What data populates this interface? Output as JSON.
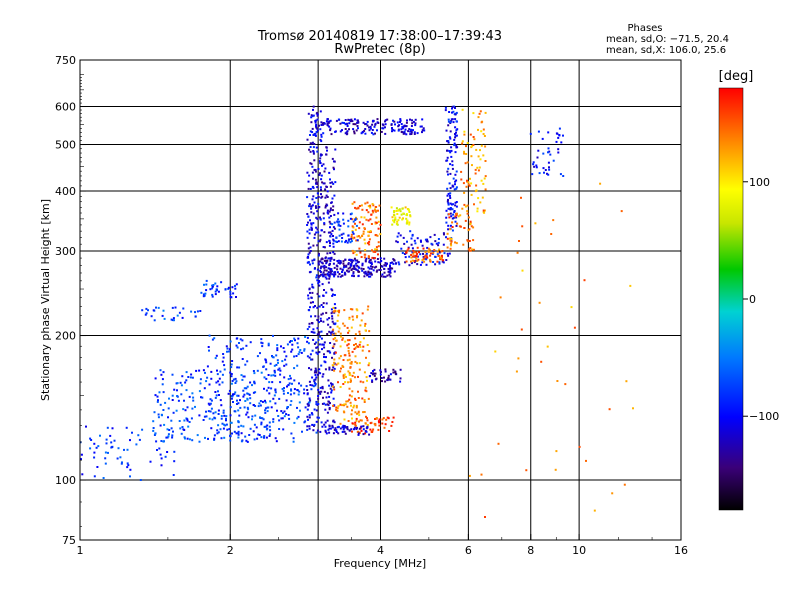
{
  "header": {
    "title_line1": "Tromsø 20140819 17:38:00–17:39:43",
    "title_line2": "RwPretec (8p)",
    "stats_title": "Phases",
    "stats_o": "mean, sd,O: −71.5, 20.4",
    "stats_x": "mean, sd,X: 106.0, 25.6"
  },
  "colorbar": {
    "label": "[deg]",
    "min": -180,
    "max": 180,
    "ticks": [
      {
        "value": 100,
        "label": "100"
      },
      {
        "value": 0,
        "label": "0"
      },
      {
        "value": -100,
        "label": "−100"
      }
    ]
  },
  "chart_data": {
    "type": "scatter",
    "title": "Tromsø 20140819 17:38:00–17:39:43",
    "subtitle": "RwPretec (8p)",
    "xlabel": "Frequency [MHz]",
    "ylabel": "Stationary phase Virtual Height [km]",
    "xscale": "log",
    "yscale": "log",
    "xlim": [
      1,
      16
    ],
    "ylim": [
      75,
      750
    ],
    "grid": true,
    "color_by": "phase [deg]",
    "x_ticks": [
      {
        "value": 1,
        "label": "1"
      },
      {
        "value": 2,
        "label": "2"
      },
      {
        "value": 4,
        "label": "4"
      },
      {
        "value": 6,
        "label": "6"
      },
      {
        "value": 8,
        "label": "8"
      },
      {
        "value": 10,
        "label": "10"
      },
      {
        "value": 16,
        "label": "16"
      }
    ],
    "x_gridlines": [
      2,
      3,
      4,
      6,
      8,
      10
    ],
    "y_ticks": [
      {
        "value": 75,
        "label": "75"
      },
      {
        "value": 100,
        "label": "100"
      },
      {
        "value": 200,
        "label": "200"
      },
      {
        "value": 300,
        "label": "300"
      },
      {
        "value": 400,
        "label": "400"
      },
      {
        "value": 500,
        "label": "500"
      },
      {
        "value": 600,
        "label": "600"
      },
      {
        "value": 750,
        "label": "750"
      }
    ],
    "y_gridlines": [
      100,
      200,
      300,
      400,
      500,
      600
    ],
    "clusters": [
      {
        "f_min": 1.0,
        "f_max": 1.55,
        "h_min": 100,
        "h_max": 130,
        "phase": -80,
        "n": 70
      },
      {
        "f_min": 1.4,
        "f_max": 2.3,
        "h_min": 120,
        "h_max": 170,
        "phase": -75,
        "n": 200
      },
      {
        "f_min": 1.8,
        "f_max": 2.7,
        "h_min": 120,
        "h_max": 200,
        "phase": -80,
        "n": 200
      },
      {
        "f_min": 2.3,
        "f_max": 3.0,
        "h_min": 125,
        "h_max": 200,
        "phase": -75,
        "n": 120
      },
      {
        "f_min": 1.3,
        "f_max": 1.75,
        "h_min": 215,
        "h_max": 230,
        "phase": -70,
        "n": 30
      },
      {
        "f_min": 1.75,
        "f_max": 2.1,
        "h_min": 240,
        "h_max": 260,
        "phase": -80,
        "n": 40
      },
      {
        "f_min": 2.85,
        "f_max": 3.05,
        "h_min": 125,
        "h_max": 600,
        "phase": -110,
        "n": 300
      },
      {
        "f_min": 3.05,
        "f_max": 3.25,
        "h_min": 125,
        "h_max": 500,
        "phase": -115,
        "n": 220
      },
      {
        "f_min": 2.95,
        "f_max": 4.9,
        "h_min": 525,
        "h_max": 565,
        "phase": -115,
        "n": 180
      },
      {
        "f_min": 3.0,
        "f_max": 4.3,
        "h_min": 265,
        "h_max": 290,
        "phase": -120,
        "n": 220
      },
      {
        "f_min": 4.3,
        "f_max": 5.6,
        "h_min": 280,
        "h_max": 330,
        "phase": -100,
        "n": 90
      },
      {
        "f_min": 5.4,
        "f_max": 5.7,
        "h_min": 330,
        "h_max": 600,
        "phase": -100,
        "n": 120
      },
      {
        "f_min": 3.2,
        "f_max": 3.8,
        "h_min": 130,
        "h_max": 230,
        "phase": 135,
        "n": 200
      },
      {
        "f_min": 3.5,
        "f_max": 4.0,
        "h_min": 290,
        "h_max": 380,
        "phase": 140,
        "n": 110
      },
      {
        "f_min": 3.2,
        "f_max": 3.6,
        "h_min": 310,
        "h_max": 360,
        "phase": -85,
        "n": 50
      },
      {
        "f_min": 4.2,
        "f_max": 4.6,
        "h_min": 340,
        "h_max": 370,
        "phase": 90,
        "n": 50
      },
      {
        "f_min": 4.5,
        "f_max": 5.4,
        "h_min": 285,
        "h_max": 305,
        "phase": 150,
        "n": 60
      },
      {
        "f_min": 5.4,
        "f_max": 6.2,
        "h_min": 300,
        "h_max": 360,
        "phase": 140,
        "n": 50
      },
      {
        "f_min": 5.8,
        "f_max": 6.5,
        "h_min": 360,
        "h_max": 600,
        "phase": 130,
        "n": 80
      },
      {
        "f_min": 3.5,
        "f_max": 4.3,
        "h_min": 125,
        "h_max": 135,
        "phase": 160,
        "n": 50
      },
      {
        "f_min": 3.1,
        "f_max": 3.8,
        "h_min": 124,
        "h_max": 130,
        "phase": -115,
        "n": 50
      },
      {
        "f_min": 3.8,
        "f_max": 4.4,
        "h_min": 160,
        "h_max": 170,
        "phase": -120,
        "n": 40
      },
      {
        "f_min": 8.0,
        "f_max": 9.4,
        "h_min": 430,
        "h_max": 540,
        "phase": -95,
        "n": 40
      },
      {
        "f_min": 6.0,
        "f_max": 13.0,
        "h_min": 80,
        "h_max": 420,
        "phase": 130,
        "n": 40
      }
    ]
  }
}
